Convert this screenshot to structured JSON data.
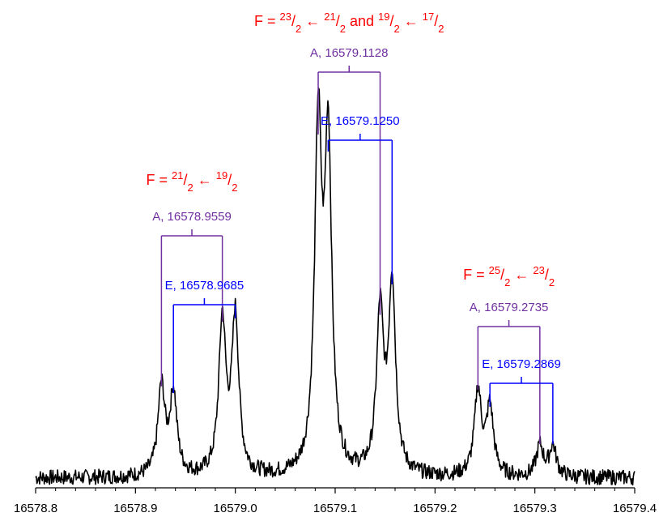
{
  "colors": {
    "A": "#7030a0",
    "E": "#0000ff",
    "F": "#ff0000",
    "trace": "#000000"
  },
  "chart_data": {
    "type": "line",
    "title": "",
    "xlabel": "",
    "ylabel": "",
    "xlim": [
      16578.8,
      16579.4
    ],
    "xticks": [
      "16578.8",
      "16578.9",
      "16579.0",
      "16579.1",
      "16579.2",
      "16579.3",
      "16579.4"
    ],
    "grid": false,
    "legend": "none",
    "series": [
      {
        "peaks": [
          {
            "x": 16578.926,
            "h": 0.26
          },
          {
            "x": 16578.938,
            "h": 0.24
          },
          {
            "x": 16578.987,
            "h": 0.45
          },
          {
            "x": 16579.0,
            "h": 0.46
          },
          {
            "x": 16579.083,
            "h": 1.0
          },
          {
            "x": 16579.093,
            "h": 0.95
          },
          {
            "x": 16579.145,
            "h": 0.47
          },
          {
            "x": 16579.157,
            "h": 0.56
          },
          {
            "x": 16579.243,
            "h": 0.25
          },
          {
            "x": 16579.255,
            "h": 0.2
          },
          {
            "x": 16579.305,
            "h": 0.09
          },
          {
            "x": 16579.318,
            "h": 0.09
          }
        ]
      }
    ],
    "transitions": [
      {
        "f_label": {
          "pre": "F = ",
          "n1": "21",
          "d1": "2",
          "arrow": " ← ",
          "n2": "19",
          "d2": "2",
          "post": ""
        },
        "A": {
          "label": "A, 16578.9559",
          "lines": [
            16578.926,
            16578.987
          ]
        },
        "E": {
          "label": "E, 16578.9685",
          "lines": [
            16578.938,
            16579.0
          ]
        }
      },
      {
        "f_label": {
          "pre": "F = ",
          "n1": "23",
          "d1": "2",
          "arrow": " ← ",
          "n2": "21",
          "d2": "2",
          "post": " and ",
          "n3": "19",
          "d3": "2",
          "arrow2": " ← ",
          "n4": "17",
          "d4": "2"
        },
        "A": {
          "label": "A, 16579.1128",
          "lines": [
            16579.083,
            16579.145
          ]
        },
        "E": {
          "label": "E, 16579.1250",
          "lines": [
            16579.093,
            16579.157
          ]
        }
      },
      {
        "f_label": {
          "pre": "F = ",
          "n1": "25",
          "d1": "2",
          "arrow": " ← ",
          "n2": "23",
          "d2": "2",
          "post": ""
        },
        "A": {
          "label": "A, 16579.2735",
          "lines": [
            16579.243,
            16579.305
          ]
        },
        "E": {
          "label": "E, 16579.2869",
          "lines": [
            16579.255,
            16579.318
          ]
        }
      }
    ]
  }
}
